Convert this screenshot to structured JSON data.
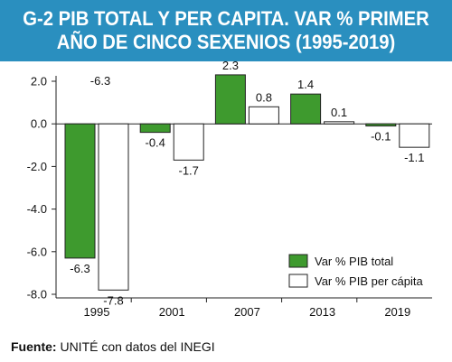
{
  "header": {
    "title_line1": "G-2 PIB TOTAL Y PER CAPITA. VAR % PRIMER",
    "title_line2": "AÑO DE CINCO SEXENIOS (1995-2019)"
  },
  "source": {
    "label": "Fuente:",
    "text": "UNITÉ con datos del INEGI"
  },
  "colors": {
    "header_bg": "#2a8fbf",
    "series_total": "#3e9a2e",
    "series_percapita": "#ffffff"
  },
  "chart_data": {
    "type": "bar",
    "categories": [
      "1995",
      "2001",
      "2007",
      "2013",
      "2019"
    ],
    "series": [
      {
        "name": "Var % PIB total",
        "values": [
          -6.3,
          -0.4,
          2.3,
          1.4,
          -0.1
        ],
        "color": "#3e9a2e"
      },
      {
        "name": "Var % PIB per cápita",
        "values": [
          -7.8,
          -1.7,
          0.8,
          0.1,
          -1.1
        ],
        "color": "#ffffff"
      }
    ],
    "ylim": [
      -8,
      2
    ],
    "yticks": [
      "2.0",
      "0.0",
      "-2.0",
      "-4.0",
      "-6.0",
      "-8.0"
    ],
    "ytick_values": [
      2,
      0,
      -2,
      -4,
      -6,
      -8
    ],
    "data_labels": {
      "total": [
        "-6.3",
        "-0.4",
        "2.3",
        "1.4",
        "-0.1"
      ],
      "percapita": [
        "-7.8",
        "-1.7",
        "0.8",
        "0.1",
        "-1.1"
      ],
      "extra_top_label_1995": "-6.3"
    },
    "legend_position": "bottom-right",
    "grid": false
  }
}
